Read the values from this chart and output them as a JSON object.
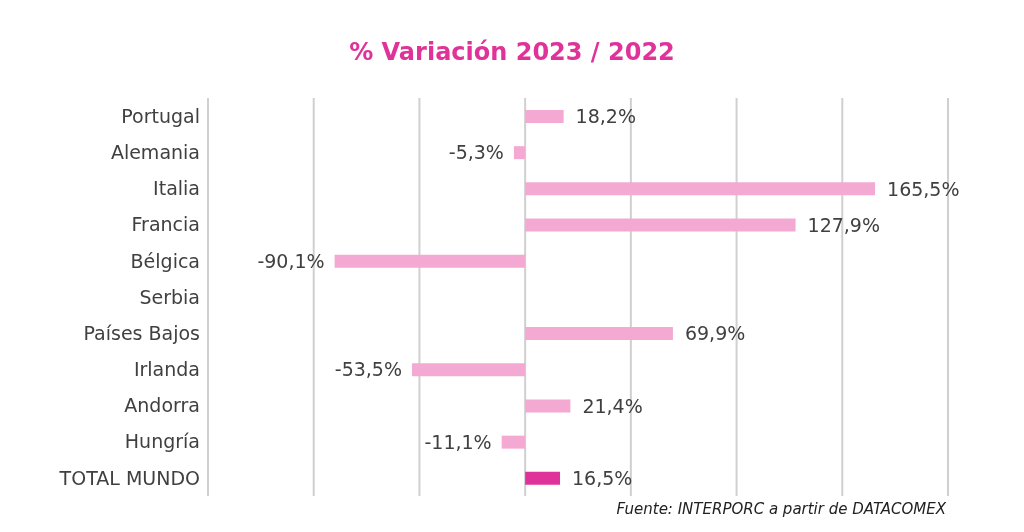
{
  "chart_data": {
    "type": "bar",
    "orientation": "horizontal",
    "title": "% Variación 2023 / 2022",
    "categories": [
      "Portugal",
      "Alemania",
      "Italia",
      "Francia",
      "Bélgica",
      "Serbia",
      "Países Bajos",
      "Irlanda",
      "Andorra",
      "Hungría",
      "TOTAL MUNDO"
    ],
    "values": [
      18.2,
      -5.3,
      165.5,
      127.9,
      -90.1,
      null,
      69.9,
      -53.5,
      21.4,
      -11.1,
      16.5
    ],
    "colors": [
      "#f4a9d2",
      "#f4a9d2",
      "#f4a9d2",
      "#f4a9d2",
      "#f4a9d2",
      "#f4a9d2",
      "#f4a9d2",
      "#f4a9d2",
      "#f4a9d2",
      "#f4a9d2",
      "#e0339a"
    ],
    "value_labels": [
      "18,2%",
      "-5,3%",
      "165,5%",
      "127,9%",
      "-90,1%",
      null,
      "69,9%",
      "-53,5%",
      "21,4%",
      "-11,1%",
      "16,5%"
    ],
    "xlim": [
      -150,
      200
    ],
    "xticks": [
      {
        "value": -150,
        "label": null
      },
      {
        "value": -100,
        "label": null
      },
      {
        "value": -50,
        "label": null
      },
      {
        "value": 0,
        "label": null
      },
      {
        "value": 50,
        "label": null
      },
      {
        "value": 100,
        "label": null
      },
      {
        "value": 150,
        "label": null
      },
      {
        "value": 200,
        "label": null
      }
    ],
    "grid": "x",
    "tick_labels": "y",
    "legend": false,
    "annotations": [
      "Fuente: INTERPORC  a partir de DATACOMEX"
    ]
  }
}
